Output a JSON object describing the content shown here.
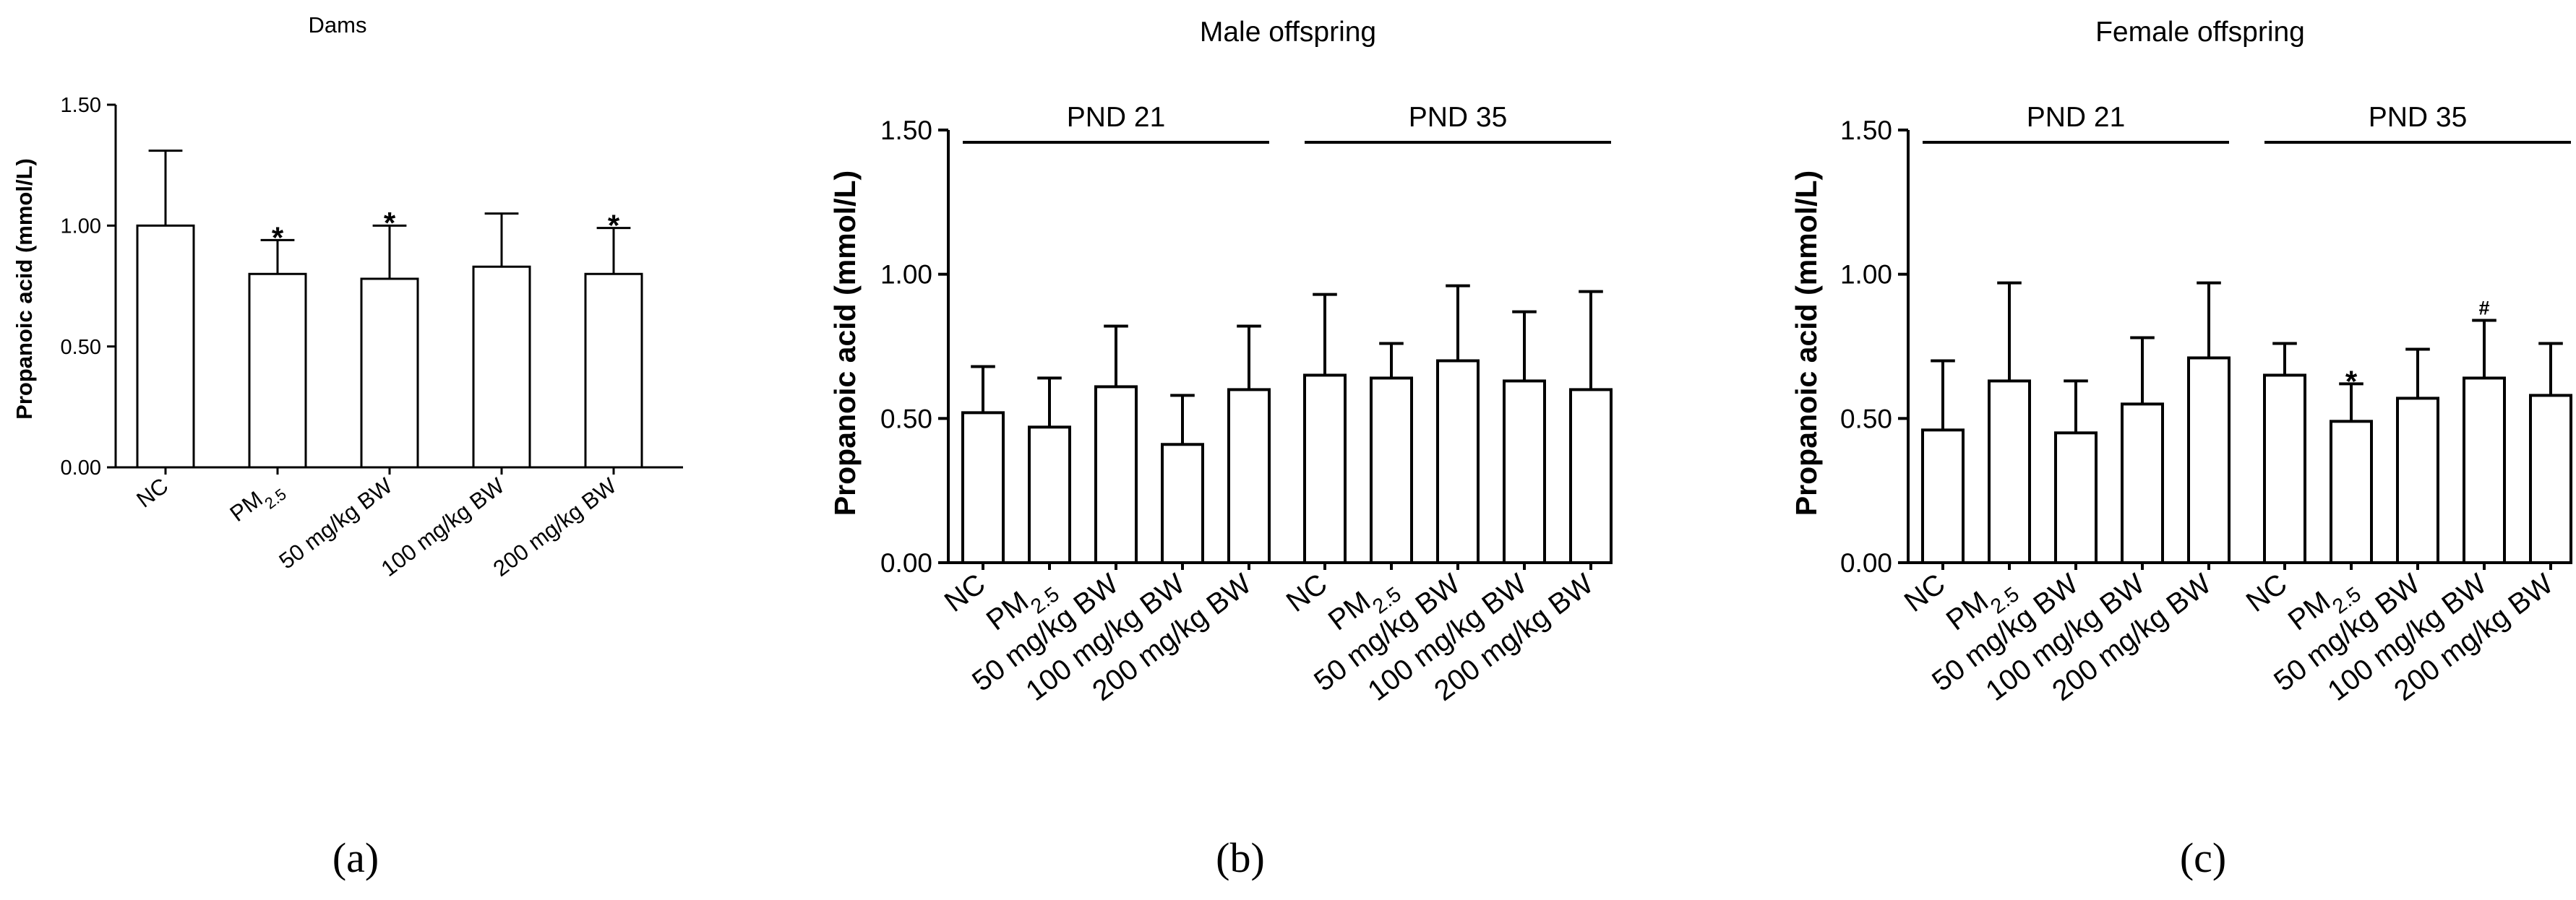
{
  "chart_data": [
    {
      "type": "bar",
      "panel_label": "(a)",
      "title": "Dams",
      "ylabel": "Propanoic acid (mmol/L)",
      "xlabel": "",
      "ylim": [
        0,
        1.5
      ],
      "yticks": [
        "0.00",
        "0.50",
        "1.00",
        "1.50"
      ],
      "categories": [
        "NC",
        "PM2.5",
        "50 mg/kg BW",
        "100 mg/kg BW",
        "200 mg/kg BW"
      ],
      "groups": [
        {
          "name": "",
          "values": [
            1.0,
            0.8,
            0.78,
            0.83,
            0.8
          ],
          "errors": [
            0.31,
            0.14,
            0.22,
            0.22,
            0.19
          ],
          "marks": [
            "",
            "*",
            "*",
            "",
            "*"
          ]
        }
      ]
    },
    {
      "type": "bar",
      "panel_label": "(b)",
      "title": "Male offspring",
      "ylabel": "Propanoic acid (mmol/L)",
      "xlabel": "",
      "ylim": [
        0,
        1.5
      ],
      "yticks": [
        "0.00",
        "0.50",
        "1.00",
        "1.50"
      ],
      "categories": [
        "NC",
        "PM2.5",
        "50 mg/kg BW",
        "100 mg/kg BW",
        "200 mg/kg BW"
      ],
      "groups": [
        {
          "name": "PND 21",
          "values": [
            0.52,
            0.47,
            0.61,
            0.41,
            0.6
          ],
          "errors": [
            0.16,
            0.17,
            0.21,
            0.17,
            0.22
          ],
          "marks": [
            "",
            "",
            "",
            "",
            ""
          ]
        },
        {
          "name": "PND 35",
          "values": [
            0.65,
            0.64,
            0.7,
            0.63,
            0.6
          ],
          "errors": [
            0.28,
            0.12,
            0.26,
            0.24,
            0.34
          ],
          "marks": [
            "",
            "",
            "",
            "",
            ""
          ]
        }
      ]
    },
    {
      "type": "bar",
      "panel_label": "(c)",
      "title": "Female offspring",
      "ylabel": "Propanoic acid (mmol/L)",
      "xlabel": "",
      "ylim": [
        0,
        1.5
      ],
      "yticks": [
        "0.00",
        "0.50",
        "1.00",
        "1.50"
      ],
      "categories": [
        "NC",
        "PM2.5",
        "50 mg/kg BW",
        "100 mg/kg BW",
        "200 mg/kg BW"
      ],
      "groups": [
        {
          "name": "PND 21",
          "values": [
            0.46,
            0.63,
            0.45,
            0.55,
            0.71
          ],
          "errors": [
            0.24,
            0.34,
            0.18,
            0.23,
            0.26
          ],
          "marks": [
            "",
            "",
            "",
            "",
            ""
          ]
        },
        {
          "name": "PND 35",
          "values": [
            0.65,
            0.49,
            0.57,
            0.64,
            0.58
          ],
          "errors": [
            0.11,
            0.13,
            0.17,
            0.2,
            0.18
          ],
          "marks": [
            "",
            "*",
            "",
            "#",
            ""
          ]
        }
      ]
    }
  ]
}
